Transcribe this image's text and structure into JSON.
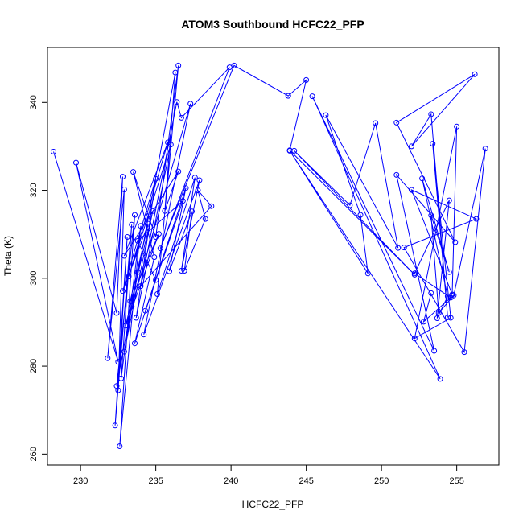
{
  "chart_data": {
    "type": "line",
    "title": "ATOM3 Southbound HCFC22_PFP",
    "xlabel": "HCFC22_PFP",
    "ylabel": "Theta (K)",
    "xlim": [
      227.8,
      257.8
    ],
    "ylim": [
      257.5,
      352.5
    ],
    "xticks": [
      230,
      235,
      240,
      245,
      250,
      255
    ],
    "yticks": [
      260,
      280,
      300,
      320,
      340
    ],
    "grid": false,
    "legend": "none",
    "series": [
      {
        "color": "#0000ff",
        "marker": "open-circle",
        "x": [
          228.2,
          232.5,
          229.7,
          232.4,
          232.8,
          231.8,
          232.9,
          232.5,
          233.1,
          232.3,
          233.4,
          232.7,
          234.0,
          232.6,
          233.6,
          232.4,
          233.8,
          232.9,
          234.8,
          233.0,
          235.2,
          233.3,
          234.5,
          232.8,
          235.0,
          233.7,
          236.0,
          233.2,
          235.8,
          232.9,
          236.5,
          235.6,
          236.3,
          233.4,
          237.3,
          234.2,
          237.9,
          236.7,
          237.6,
          235.1,
          236.5,
          235.0,
          233.5,
          234.9,
          233.6,
          235.0,
          233.8,
          236.8,
          234.3,
          237.0,
          235.9,
          237.4,
          236.9,
          238.3,
          237.8,
          238.7,
          234.0,
          236.4,
          236.7,
          239.9,
          235.3,
          240.2,
          243.8,
          245.0,
          243.9,
          252.2,
          244.2,
          247.9,
          249.6,
          251.1,
          246.3,
          248.6,
          249.1,
          243.9,
          253.9,
          245.4,
          253.5,
          251.0,
          254.9,
          251.0,
          256.2,
          252.0,
          253.3,
          254.4,
          253.4,
          254.6,
          252.2,
          255.0,
          254.7,
          252.0,
          256.3,
          251.5,
          255.5,
          256.9,
          254.8,
          253.8,
          253.3,
          254.5,
          252.7,
          254.4,
          253.7,
          254.5,
          252.2,
          254.6,
          252.8,
          253.3
        ],
        "y": [
          328.8,
          281.0,
          326.3,
          292.1,
          323.1,
          281.8,
          320.2,
          274.5,
          309.4,
          266.5,
          312.2,
          277.2,
          311.9,
          261.8,
          314.4,
          275.5,
          301.4,
          283.3,
          315.3,
          289.2,
          310.1,
          294.8,
          312.4,
          297.1,
          322.6,
          291.0,
          330.4,
          300.4,
          330.9,
          305.1,
          324.3,
          315.3,
          346.8,
          293.6,
          339.7,
          287.2,
          322.3,
          301.7,
          322.9,
          296.4,
          348.4,
          309.4,
          324.2,
          304.8,
          285.2,
          299.6,
          308.5,
          317.6,
          292.6,
          320.5,
          301.6,
          315.2,
          301.7,
          313.5,
          320.0,
          316.4,
          298.2,
          340.1,
          336.5,
          348.0,
          306.8,
          348.4,
          341.5,
          345.1,
          329.1,
          300.8,
          329.0,
          316.6,
          335.3,
          306.9,
          337.1,
          314.4,
          301.1,
          329.0,
          277.1,
          341.4,
          283.5,
          323.5,
          308.2,
          335.4,
          346.4,
          330.0,
          337.3,
          291.1,
          330.6,
          291.0,
          286.3,
          334.5,
          296.3,
          320.1,
          313.5,
          307.0,
          283.2,
          329.5,
          296.1,
          292.1,
          314.3,
          301.4,
          322.7,
          295.9,
          290.9,
          317.7,
          301.1,
          295.6,
          290.1,
          296.6
        ]
      }
    ]
  }
}
